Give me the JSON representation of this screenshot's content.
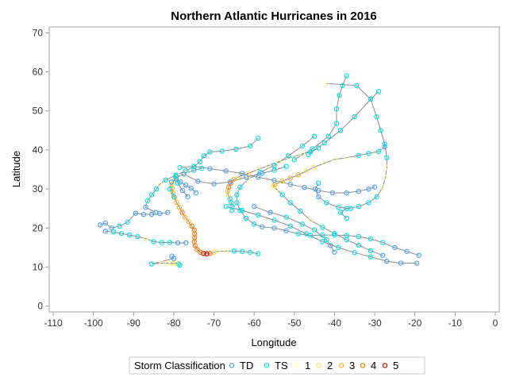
{
  "chart_data": {
    "type": "scatter",
    "title": "Northern Atlantic Hurricanes in 2016",
    "xlabel": "Longitude",
    "ylabel": "Latitude",
    "xlim": [
      -111,
      1
    ],
    "ylim": [
      -1.5,
      71.5
    ],
    "xticks": [
      -110,
      -100,
      -90,
      -80,
      -70,
      -60,
      -50,
      -40,
      -30,
      -20,
      -10,
      0
    ],
    "yticks": [
      0,
      10,
      20,
      30,
      40,
      50,
      60,
      70
    ],
    "grid": false,
    "legend": {
      "title": "Storm Classification",
      "placement": "bottom",
      "entries": [
        "TD",
        "TS",
        "1",
        "2",
        "3",
        "4",
        "5"
      ]
    },
    "class_colors": {
      "TD": "#4aa3ff",
      "TS": "#00e0e8",
      "1": "#ffffb0",
      "2": "#ffe050",
      "3": "#ffb020",
      "4": "#ff7a00",
      "5": "#e00000"
    },
    "line_color": "#8c8c8c",
    "tracks": [
      [
        [
          -59,
          13.4,
          "TS"
        ],
        [
          -61,
          13.8,
          "TS"
        ],
        [
          -63,
          14,
          "TS"
        ],
        [
          -65,
          14.1,
          "TS"
        ],
        [
          -67,
          14.1,
          "1"
        ],
        [
          -69,
          14,
          "1"
        ],
        [
          -70,
          13.8,
          "2"
        ],
        [
          -71,
          13.5,
          "4"
        ],
        [
          -71.8,
          13.4,
          "5"
        ],
        [
          -72.6,
          13.5,
          "5"
        ],
        [
          -73.4,
          13.8,
          "4"
        ],
        [
          -74.2,
          14.5,
          "4"
        ],
        [
          -74.7,
          15.5,
          "4"
        ],
        [
          -74.9,
          16.5,
          "4"
        ],
        [
          -74.8,
          17.5,
          "4"
        ],
        [
          -74.8,
          18.5,
          "4"
        ],
        [
          -74.9,
          19.5,
          "4"
        ],
        [
          -75.5,
          20.5,
          "4"
        ],
        [
          -76.3,
          21.6,
          "3"
        ],
        [
          -77.2,
          22.8,
          "3"
        ],
        [
          -77.9,
          24,
          "4"
        ],
        [
          -78.6,
          25.3,
          "3"
        ],
        [
          -79.3,
          26.6,
          "3"
        ],
        [
          -79.8,
          27.8,
          "3"
        ],
        [
          -80.2,
          29,
          "3"
        ],
        [
          -80.4,
          30.2,
          "3"
        ],
        [
          -80.4,
          31.3,
          "2"
        ],
        [
          -79.8,
          32.3,
          "2"
        ],
        [
          -78.8,
          33.2,
          "1"
        ],
        [
          -77,
          34,
          "1"
        ],
        [
          -75,
          34.8,
          "TS"
        ],
        [
          -73,
          35.3,
          "TS"
        ]
      ],
      [
        [
          -65.5,
          24.5,
          "TS"
        ],
        [
          -65.5,
          25.5,
          "TS"
        ],
        [
          -65.7,
          26.5,
          "TS"
        ],
        [
          -66,
          27.5,
          "TS"
        ],
        [
          -66.5,
          28.5,
          "2"
        ],
        [
          -66.6,
          29.5,
          "3"
        ],
        [
          -66.3,
          30.5,
          "4"
        ],
        [
          -65.8,
          31.5,
          "4"
        ],
        [
          -65,
          32.5,
          "3"
        ],
        [
          -63.5,
          33.3,
          "2"
        ],
        [
          -61.5,
          34,
          "2"
        ],
        [
          -59,
          35,
          "1"
        ],
        [
          -56.5,
          36,
          "1"
        ],
        [
          -54,
          37,
          "1"
        ],
        [
          -51,
          38,
          "1"
        ],
        [
          -48,
          39,
          "1"
        ],
        [
          -46,
          39.5,
          "TS"
        ],
        [
          -44,
          40.5,
          "TS"
        ]
      ],
      [
        [
          -28,
          13,
          "TD"
        ],
        [
          -31,
          14.2,
          "TS"
        ],
        [
          -34,
          15.6,
          "TS"
        ],
        [
          -37,
          17,
          "TS"
        ],
        [
          -40,
          18.6,
          "TS"
        ],
        [
          -43,
          20.2,
          "TS"
        ],
        [
          -46,
          22,
          "1"
        ],
        [
          -48.5,
          24.3,
          "TS"
        ],
        [
          -51,
          26.5,
          "TS"
        ],
        [
          -53,
          28.5,
          "TS"
        ],
        [
          -54.5,
          30,
          "1"
        ],
        [
          -55.3,
          30.8,
          "2"
        ],
        [
          -54.8,
          31.2,
          "3"
        ],
        [
          -53,
          32,
          "3"
        ],
        [
          -51,
          32.8,
          "3"
        ],
        [
          -49,
          33.6,
          "3"
        ],
        [
          -47,
          34.6,
          "2"
        ],
        [
          -45,
          35.6,
          "2"
        ],
        [
          -42.5,
          36.6,
          "1"
        ],
        [
          -40,
          37.6,
          "1"
        ],
        [
          -37,
          38,
          "1"
        ],
        [
          -34,
          38.6,
          "TS"
        ],
        [
          -31.5,
          39.1,
          "TS"
        ],
        [
          -29,
          39.6,
          "TS"
        ],
        [
          -27.5,
          40.8,
          "TD"
        ]
      ],
      [
        [
          -19,
          13,
          "TD"
        ],
        [
          -22,
          14,
          "TD"
        ],
        [
          -25,
          15,
          "TD"
        ],
        [
          -28,
          16.3,
          "TS"
        ],
        [
          -31,
          17.2,
          "TS"
        ],
        [
          -34,
          17.8,
          "TS"
        ],
        [
          -37,
          18.1,
          "TS"
        ],
        [
          -40,
          18.2,
          "TS"
        ],
        [
          -43,
          18.2,
          "TS"
        ],
        [
          -46,
          18.1,
          "TS"
        ],
        [
          -49,
          18.5,
          "TS"
        ],
        [
          -52,
          19.3,
          "TD"
        ],
        [
          -55,
          20,
          "TD"
        ],
        [
          -58,
          20.3,
          "TD"
        ],
        [
          -60,
          21,
          "TS"
        ],
        [
          -62,
          22.5,
          "TS"
        ],
        [
          -63.5,
          24.5,
          "TS"
        ],
        [
          -64.3,
          26.5,
          "TS"
        ],
        [
          -64.3,
          28.5,
          "TS"
        ],
        [
          -63.5,
          30.5,
          "TS"
        ],
        [
          -61.5,
          32.5,
          "1"
        ],
        [
          -58.5,
          34.3,
          "TS"
        ],
        [
          -55,
          36,
          "TS"
        ],
        [
          -51.5,
          38.5,
          "TS"
        ],
        [
          -48,
          41,
          "TS"
        ],
        [
          -45,
          43.5,
          "TS"
        ]
      ],
      [
        [
          -77,
          16.2,
          "TD"
        ],
        [
          -79,
          16.2,
          "TD"
        ],
        [
          -81,
          16.3,
          "TS"
        ],
        [
          -83,
          16.3,
          "TS"
        ],
        [
          -85,
          16.5,
          "TS"
        ],
        [
          -87,
          17.3,
          "1"
        ],
        [
          -89,
          17.8,
          "TS"
        ],
        [
          -91,
          18.2,
          "TS"
        ],
        [
          -93,
          18.6,
          "TS"
        ],
        [
          -95,
          19,
          "TS"
        ],
        [
          -97,
          19.2,
          "TD"
        ]
      ],
      [
        [
          -81.5,
          24,
          "TD"
        ],
        [
          -83.5,
          23.7,
          "TD"
        ],
        [
          -85.5,
          23.5,
          "TD"
        ],
        [
          -87.5,
          23.5,
          "TD"
        ],
        [
          -89.5,
          23.8,
          "TD"
        ],
        [
          -91.5,
          21.5,
          "TS"
        ],
        [
          -93.5,
          20.5,
          "TS"
        ],
        [
          -95.5,
          20,
          "TD"
        ],
        [
          -97,
          21.3,
          "TD"
        ],
        [
          -98.3,
          20.8,
          "TD"
        ]
      ],
      [
        [
          -78.5,
          10.5,
          "TS"
        ],
        [
          -78.8,
          10.8,
          "TS"
        ],
        [
          -79.5,
          11,
          "2"
        ],
        [
          -80.5,
          11,
          "2"
        ],
        [
          -81.5,
          11,
          "1"
        ],
        [
          -83,
          11,
          "1"
        ],
        [
          -85.5,
          10.8,
          "TS"
        ],
        [
          -80,
          12.2,
          "TD"
        ],
        [
          -80.5,
          12.8,
          "TD"
        ]
      ],
      [
        [
          -84.5,
          24,
          "TD"
        ],
        [
          -87,
          25.3,
          "TD"
        ],
        [
          -86.5,
          27,
          "TS"
        ],
        [
          -85.5,
          28.5,
          "TS"
        ],
        [
          -84.3,
          30,
          "TS"
        ],
        [
          -83.5,
          31.2,
          "1"
        ],
        [
          -82,
          32.3,
          "TS"
        ],
        [
          -79.5,
          33.5,
          "TS"
        ],
        [
          -77,
          34.7,
          "TS"
        ],
        [
          -75,
          35.7,
          "TS"
        ],
        [
          -73.5,
          37,
          "TS"
        ],
        [
          -72.5,
          38.5,
          "TS"
        ],
        [
          -71,
          39.5,
          "TS"
        ],
        [
          -68,
          39.7,
          "TS"
        ],
        [
          -64.5,
          40.2,
          "TS"
        ],
        [
          -61,
          41,
          "TS"
        ],
        [
          -59,
          43,
          "TS"
        ]
      ],
      [
        [
          -80,
          28,
          "TS"
        ],
        [
          -81,
          30,
          "TS"
        ],
        [
          -80.6,
          31.8,
          "TD"
        ],
        [
          -79.4,
          32.6,
          "TD"
        ],
        [
          -78.3,
          31.8,
          "TD"
        ],
        [
          -77,
          31,
          "TD"
        ],
        [
          -75.7,
          30.2,
          "TD"
        ],
        [
          -74.5,
          29,
          "TD"
        ]
      ],
      [
        [
          -76.5,
          28,
          "TD"
        ],
        [
          -77.8,
          29.6,
          "TD"
        ],
        [
          -79,
          31.5,
          "TS"
        ],
        [
          -79.5,
          33.2,
          "TS"
        ],
        [
          -77.5,
          33.8,
          "TD"
        ],
        [
          -74,
          32,
          "TD"
        ],
        [
          -70,
          31.3,
          "TD"
        ],
        [
          -66,
          31.8,
          "TD"
        ],
        [
          -62,
          33,
          "TD"
        ],
        [
          -58,
          34,
          "TD"
        ],
        [
          -55,
          34.8,
          "TS"
        ],
        [
          -52,
          35.8,
          "TS"
        ]
      ],
      [
        [
          -78.5,
          35.5,
          "TS"
        ],
        [
          -75,
          35.8,
          "TS"
        ],
        [
          -71,
          35.2,
          "TD"
        ],
        [
          -67,
          34.6,
          "TD"
        ],
        [
          -63,
          34,
          "TD"
        ],
        [
          -59,
          33,
          "TD"
        ],
        [
          -55,
          32.2,
          "TD"
        ],
        [
          -51,
          31.2,
          "TD"
        ],
        [
          -47.5,
          30.4,
          "TD"
        ],
        [
          -44,
          29.6,
          "TD"
        ],
        [
          -40.5,
          29,
          "TD"
        ],
        [
          -37,
          29,
          "TD"
        ],
        [
          -34,
          29.4,
          "TD"
        ],
        [
          -31.5,
          30,
          "TD"
        ],
        [
          -30,
          30.5,
          "TD"
        ]
      ],
      [
        [
          -37,
          22.5,
          "TS"
        ],
        [
          -38.5,
          24,
          "TS"
        ],
        [
          -37,
          25,
          "TS"
        ],
        [
          -34,
          25.5,
          "TS"
        ],
        [
          -31.5,
          26.5,
          "TS"
        ],
        [
          -29.5,
          28,
          "TS"
        ],
        [
          -28,
          30.5,
          "1"
        ],
        [
          -27.3,
          33,
          "1"
        ],
        [
          -27,
          35.5,
          "1"
        ],
        [
          -27,
          38,
          "TS"
        ],
        [
          -27.5,
          41.5,
          "TS"
        ],
        [
          -28.5,
          45,
          "TS"
        ],
        [
          -29.5,
          48.5,
          "TS"
        ],
        [
          -31,
          53,
          "TS"
        ],
        [
          -34.5,
          56.5,
          "TS"
        ],
        [
          -42,
          57,
          "1"
        ]
      ],
      [
        [
          -46.5,
          38.8,
          "TS"
        ],
        [
          -42.5,
          41.8,
          "TS"
        ],
        [
          -38.5,
          45,
          "TS"
        ],
        [
          -35,
          48.5,
          "TS"
        ],
        [
          -31,
          53,
          "TS"
        ],
        [
          -29,
          55,
          "TS"
        ]
      ],
      [
        [
          -50,
          37.5,
          "TS"
        ],
        [
          -45.5,
          40.3,
          "TS"
        ],
        [
          -41.5,
          43.5,
          "TS"
        ],
        [
          -39.5,
          46.8,
          "TS"
        ],
        [
          -39.5,
          50.5,
          "TS"
        ],
        [
          -38.8,
          54,
          "TS"
        ],
        [
          -38,
          56.5,
          "TS"
        ],
        [
          -37,
          59,
          "TS"
        ]
      ],
      [
        [
          -67,
          25.5,
          "TS"
        ],
        [
          -63,
          24.5,
          "TS"
        ],
        [
          -59,
          23.3,
          "TS"
        ],
        [
          -55,
          22,
          "TS"
        ],
        [
          -51,
          20.5,
          "TS"
        ],
        [
          -47,
          18.5,
          "TS"
        ],
        [
          -43,
          16.5,
          "TS"
        ],
        [
          -39,
          15,
          "TS"
        ],
        [
          -35,
          13.7,
          "TS"
        ],
        [
          -31,
          12.6,
          "TS"
        ],
        [
          -27,
          11.5,
          "TD"
        ],
        [
          -23.5,
          11,
          "TD"
        ],
        [
          -19.5,
          11,
          "TD"
        ]
      ],
      [
        [
          -44,
          31.5,
          "TS"
        ],
        [
          -44.8,
          30,
          "TD"
        ],
        [
          -44,
          28,
          "TD"
        ],
        [
          -42,
          26.5,
          "TS"
        ],
        [
          -39,
          25.3,
          "TS"
        ],
        [
          -36,
          25,
          "TS"
        ]
      ],
      [
        [
          -60,
          25.5,
          "TD"
        ],
        [
          -56,
          24,
          "TD"
        ],
        [
          -52,
          22.8,
          "TS"
        ],
        [
          -48,
          21,
          "TS"
        ],
        [
          -45,
          19.5,
          "TS"
        ],
        [
          -42,
          17,
          "TS"
        ],
        [
          -41,
          15.5,
          "TD"
        ],
        [
          -40,
          13.8,
          "TD"
        ]
      ]
    ]
  }
}
